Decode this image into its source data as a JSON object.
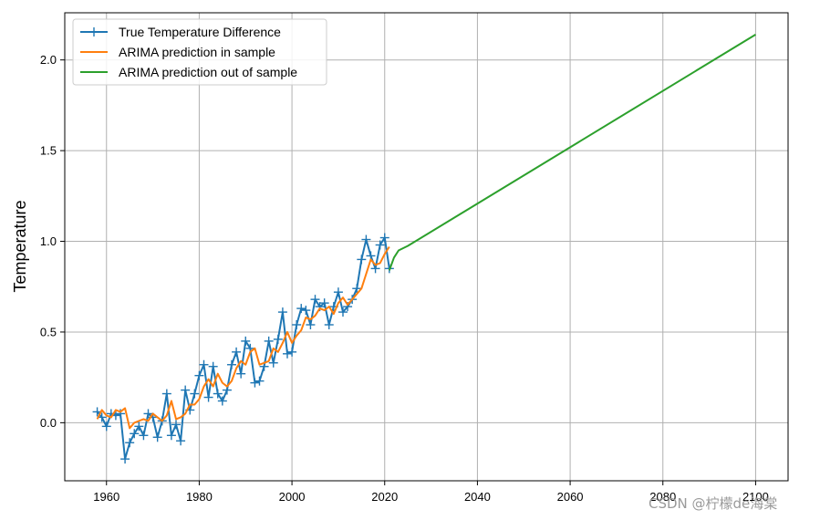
{
  "chart_data": {
    "type": "line",
    "title": "",
    "xlabel": "",
    "ylabel": "Temperature",
    "xlim": [
      1951,
      2107
    ],
    "ylim": [
      -0.32,
      2.26
    ],
    "xticks": [
      1960,
      1980,
      2000,
      2020,
      2040,
      2060,
      2080,
      2100
    ],
    "yticks": [
      0.0,
      0.5,
      1.0,
      1.5,
      2.0
    ],
    "xtick_labels": [
      "1960",
      "1980",
      "2000",
      "2020",
      "2040",
      "2060",
      "2080",
      "2100"
    ],
    "ytick_labels": [
      "0.0",
      "0.5",
      "1.0",
      "1.5",
      "2.0"
    ],
    "grid": true,
    "legend_position": "top-left",
    "series": [
      {
        "name": "True Temperature Difference",
        "color": "#1f77b4",
        "marker": "+",
        "x": [
          1958,
          1959,
          1960,
          1961,
          1962,
          1963,
          1964,
          1965,
          1966,
          1967,
          1968,
          1969,
          1970,
          1971,
          1972,
          1973,
          1974,
          1975,
          1976,
          1977,
          1978,
          1979,
          1980,
          1981,
          1982,
          1983,
          1984,
          1985,
          1986,
          1987,
          1988,
          1989,
          1990,
          1991,
          1992,
          1993,
          1994,
          1995,
          1996,
          1997,
          1998,
          1999,
          2000,
          2001,
          2002,
          2003,
          2004,
          2005,
          2006,
          2007,
          2008,
          2009,
          2010,
          2011,
          2012,
          2013,
          2014,
          2015,
          2016,
          2017,
          2018,
          2019,
          2020,
          2021
        ],
        "values": [
          0.06,
          0.03,
          -0.02,
          0.05,
          0.04,
          0.05,
          -0.2,
          -0.11,
          -0.06,
          -0.02,
          -0.07,
          0.05,
          0.03,
          -0.08,
          0.01,
          0.16,
          -0.07,
          -0.01,
          -0.1,
          0.18,
          0.07,
          0.16,
          0.26,
          0.32,
          0.14,
          0.31,
          0.16,
          0.12,
          0.18,
          0.32,
          0.39,
          0.27,
          0.45,
          0.41,
          0.22,
          0.23,
          0.31,
          0.45,
          0.33,
          0.46,
          0.61,
          0.38,
          0.39,
          0.54,
          0.63,
          0.62,
          0.54,
          0.68,
          0.64,
          0.66,
          0.54,
          0.64,
          0.72,
          0.61,
          0.64,
          0.68,
          0.74,
          0.9,
          1.01,
          0.92,
          0.85,
          0.98,
          1.02,
          0.85
        ]
      },
      {
        "name": "ARIMA prediction in sample",
        "color": "#ff7f0e",
        "x": [
          1958,
          1959,
          1960,
          1961,
          1962,
          1963,
          1964,
          1965,
          1966,
          1967,
          1968,
          1969,
          1970,
          1971,
          1972,
          1973,
          1974,
          1975,
          1976,
          1977,
          1978,
          1979,
          1980,
          1981,
          1982,
          1983,
          1984,
          1985,
          1986,
          1987,
          1988,
          1989,
          1990,
          1991,
          1992,
          1993,
          1994,
          1995,
          1996,
          1997,
          1998,
          1999,
          2000,
          2001,
          2002,
          2003,
          2004,
          2005,
          2006,
          2007,
          2008,
          2009,
          2010,
          2011,
          2012,
          2013,
          2014,
          2015,
          2016,
          2017,
          2018,
          2019,
          2020,
          2021
        ],
        "values": [
          0.02,
          0.07,
          0.04,
          0.03,
          0.07,
          0.06,
          0.08,
          -0.03,
          0.0,
          0.01,
          0.02,
          0.01,
          0.05,
          0.03,
          0.01,
          0.04,
          0.12,
          0.02,
          0.03,
          0.05,
          0.1,
          0.1,
          0.13,
          0.2,
          0.24,
          0.2,
          0.27,
          0.22,
          0.2,
          0.23,
          0.3,
          0.34,
          0.32,
          0.39,
          0.41,
          0.32,
          0.33,
          0.34,
          0.41,
          0.39,
          0.44,
          0.5,
          0.44,
          0.48,
          0.51,
          0.58,
          0.57,
          0.59,
          0.63,
          0.62,
          0.64,
          0.6,
          0.66,
          0.69,
          0.65,
          0.68,
          0.71,
          0.74,
          0.82,
          0.9,
          0.87,
          0.88,
          0.93,
          0.97
        ]
      },
      {
        "name": "ARIMA prediction out of sample",
        "color": "#2ca02c",
        "x": [
          2021,
          2022,
          2023,
          2025,
          2100
        ],
        "values": [
          0.84,
          0.91,
          0.95,
          0.975,
          2.14
        ]
      }
    ]
  },
  "watermark": "CSDN @柠檬de海棠"
}
